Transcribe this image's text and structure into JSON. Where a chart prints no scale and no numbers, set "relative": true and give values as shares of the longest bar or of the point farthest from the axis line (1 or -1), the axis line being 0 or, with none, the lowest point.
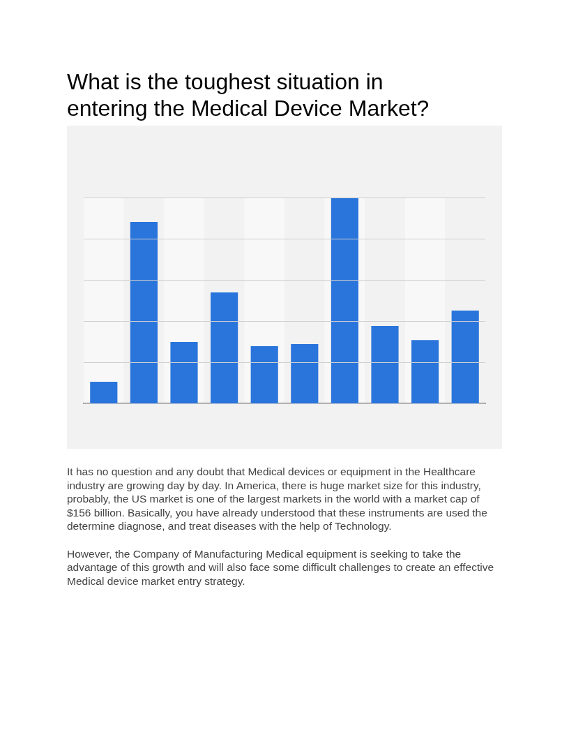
{
  "chart_data": {
    "type": "bar",
    "title": "What is the toughest situation in entering the Medical Device Market?",
    "categories": [
      null,
      null,
      null,
      null,
      null,
      null,
      null,
      null,
      null,
      null
    ],
    "values": [
      0.105,
      0.881,
      0.298,
      0.539,
      0.278,
      0.288,
      1,
      0.376,
      0.308,
      0.451
    ],
    "color": "#2a75db",
    "relative": true,
    "grid": "y",
    "annotations": [
      "It has no question and any doubt that Medical devices or equipment in the Healthcare industry are growing day by day. In America, there is huge market size for this industry, probably, the US market is one of the largest markets in the world with a market cap of $156 billion. Basically, you have already understood that these instruments are used the determine diagnose, and treat diseases with the help of Technology.",
      "However, the Company of Manufacturing Medical equipment is seeking to take the advantage of this growth and will also face some difficult challenges to create an effective Medical device market entry strategy."
    ]
  }
}
